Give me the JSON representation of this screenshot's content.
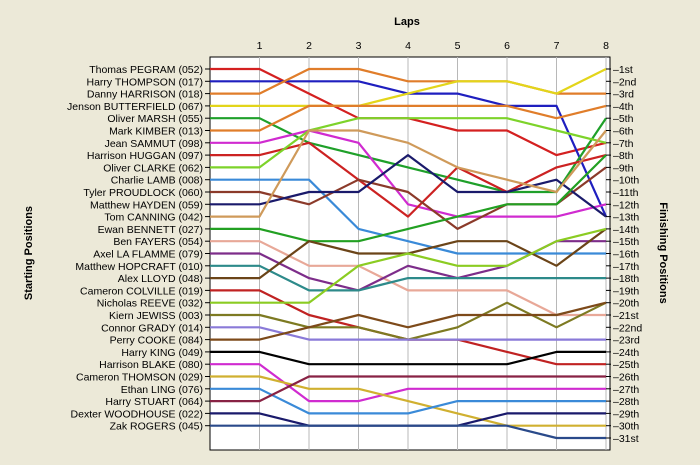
{
  "chart_data": {
    "type": "line",
    "title": "",
    "xlabel": "Laps",
    "ylabel_left": "Starting Positions",
    "ylabel_right": "Finishing Positions",
    "laps": [
      1,
      2,
      3,
      4,
      5,
      6,
      7,
      8
    ],
    "finishing_labels": [
      "1st",
      "2nd",
      "3rd",
      "4th",
      "5th",
      "6th",
      "7th",
      "8th",
      "9th",
      "10th",
      "11th",
      "12th",
      "13th",
      "14th",
      "15th",
      "16th",
      "17th",
      "18th",
      "19th",
      "20th",
      "21st",
      "22nd",
      "23rd",
      "24th",
      "25th",
      "26th",
      "27th",
      "28th",
      "29th",
      "30th",
      "31st"
    ],
    "grid": true,
    "series": [
      {
        "name": "Thomas PEGRAM (052)",
        "color": "#d42020",
        "positions": [
          1,
          1,
          3,
          5,
          5,
          6,
          6,
          8,
          7
        ]
      },
      {
        "name": "Harry THOMPSON (017)",
        "color": "#1f1fbf",
        "positions": [
          2,
          2,
          2,
          2,
          3,
          3,
          4,
          4,
          13
        ]
      },
      {
        "name": "Danny HARRISON (018)",
        "color": "#e07d2a",
        "positions": [
          3,
          3,
          1,
          1,
          2,
          2,
          2,
          3,
          3
        ]
      },
      {
        "name": "Jenson BUTTERFIELD (067)",
        "color": "#e3d51a",
        "positions": [
          4,
          4,
          4,
          4,
          3,
          2,
          2,
          3,
          1
        ]
      },
      {
        "name": "Oliver MARSH (055)",
        "color": "#1fa02a",
        "positions": [
          5,
          5,
          7,
          8,
          9,
          10,
          11,
          11,
          5
        ]
      },
      {
        "name": "Mark KIMBER (013)",
        "color": "#e07d2a",
        "positions": [
          6,
          6,
          4,
          4,
          4,
          4,
          4,
          5,
          4
        ]
      },
      {
        "name": "Jean SAMMUT (098)",
        "color": "#d02bd0",
        "positions": [
          7,
          7,
          6,
          7,
          12,
          13,
          13,
          13,
          12
        ]
      },
      {
        "name": "Harrison HUGGAN (097)",
        "color": "#cc2222",
        "positions": [
          8,
          8,
          7,
          10,
          13,
          9,
          11,
          9,
          8
        ]
      },
      {
        "name": "Oliver CLARKE (062)",
        "color": "#7dd32a",
        "positions": [
          9,
          9,
          6,
          5,
          5,
          5,
          5,
          6,
          7
        ]
      },
      {
        "name": "Charlie LAMB (008)",
        "color": "#3a8ad8",
        "positions": [
          10,
          10,
          10,
          14,
          15,
          16,
          16,
          16,
          16
        ]
      },
      {
        "name": "Tyler PROUDLOCK (060)",
        "color": "#8b3a2a",
        "positions": [
          11,
          11,
          12,
          10,
          11,
          14,
          12,
          12,
          9
        ]
      },
      {
        "name": "Matthew HAYDEN (059)",
        "color": "#1a1a6b",
        "positions": [
          12,
          12,
          11,
          11,
          8,
          11,
          11,
          10,
          13
        ]
      },
      {
        "name": "Tom CANNING (042)",
        "color": "#cf9a5a",
        "positions": [
          13,
          13,
          6,
          6,
          7,
          9,
          10,
          11,
          6
        ]
      },
      {
        "name": "Ewan BENNETT (027)",
        "color": "#22a022",
        "positions": [
          14,
          14,
          15,
          15,
          14,
          13,
          12,
          12,
          8
        ]
      },
      {
        "name": "Ben FAYERS (054)",
        "color": "#e8a898",
        "positions": [
          15,
          15,
          17,
          17,
          19,
          19,
          19,
          21,
          21
        ]
      },
      {
        "name": "Axel LA FLAMME (079)",
        "color": "#7d2d8a",
        "positions": [
          16,
          16,
          18,
          19,
          17,
          18,
          17,
          15,
          15
        ]
      },
      {
        "name": "Matthew HOPCRAFT (010)",
        "color": "#2d8a8a",
        "positions": [
          17,
          17,
          19,
          19,
          18,
          18,
          18,
          18,
          18
        ]
      },
      {
        "name": "Alex LLOYD (048)",
        "color": "#6b4418",
        "positions": [
          18,
          18,
          15,
          16,
          16,
          15,
          15,
          17,
          14
        ]
      },
      {
        "name": "Cameron COLVILLE (019)",
        "color": "#c02222",
        "positions": [
          19,
          19,
          21,
          22,
          23,
          23,
          24,
          25,
          25
        ]
      },
      {
        "name": "Nicholas REEVE (032)",
        "color": "#8bcc22",
        "positions": [
          20,
          20,
          20,
          17,
          16,
          17,
          17,
          15,
          14
        ]
      },
      {
        "name": "Kiern JEWISS (003)",
        "color": "#7d7a22",
        "positions": [
          21,
          21,
          22,
          22,
          23,
          22,
          20,
          22,
          20
        ]
      },
      {
        "name": "Connor GRADY (014)",
        "color": "#8a7ad8",
        "positions": [
          22,
          22,
          23,
          23,
          23,
          23,
          23,
          23,
          23
        ]
      },
      {
        "name": "Perry COOKE (084)",
        "color": "#7d4a1a",
        "positions": [
          23,
          23,
          22,
          21,
          22,
          21,
          21,
          21,
          20
        ]
      },
      {
        "name": "Harry KING (049)",
        "color": "#000000",
        "positions": [
          24,
          24,
          25,
          25,
          25,
          25,
          25,
          24,
          24
        ]
      },
      {
        "name": "Harrison BLAKE (080)",
        "color": "#d02bd0",
        "positions": [
          25,
          25,
          28,
          28,
          27,
          27,
          27,
          27,
          27
        ]
      },
      {
        "name": "Cameron THOMSON (029)",
        "color": "#d0b030",
        "positions": [
          26,
          26,
          27,
          27,
          28,
          29,
          30,
          30,
          30
        ]
      },
      {
        "name": "Ethan LING (076)",
        "color": "#3a8ad8",
        "positions": [
          27,
          27,
          29,
          29,
          29,
          28,
          28,
          28,
          28
        ]
      },
      {
        "name": "Harry STUART (064)",
        "color": "#882244",
        "positions": [
          28,
          28,
          26,
          26,
          26,
          26,
          26,
          26,
          26
        ]
      },
      {
        "name": "Dexter WOODHOUSE (022)",
        "color": "#1a1a6b",
        "positions": [
          29,
          29,
          30,
          30,
          30,
          30,
          29,
          29,
          29
        ]
      },
      {
        "name": "Zak ROGERS (045)",
        "color": "#2a4a8a",
        "positions": [
          30,
          30,
          30,
          30,
          30,
          30,
          30,
          31,
          31
        ]
      }
    ]
  }
}
